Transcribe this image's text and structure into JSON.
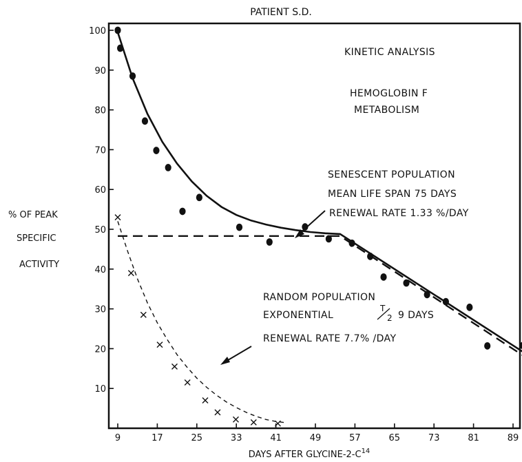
{
  "chart_data": {
    "type": "line",
    "title": "PATIENT S.D.",
    "xlabel": "DAYS AFTER GLYCINE-2-C",
    "xlabel_sup": "14",
    "ylabel_lines": [
      "% OF PEAK",
      "SPECIFIC",
      "ACTIVITY"
    ],
    "xlim": [
      9,
      92
    ],
    "ylim": [
      0,
      100
    ],
    "x_ticks": [
      9,
      17,
      25,
      33,
      41,
      49,
      57,
      65,
      73,
      81,
      89
    ],
    "y_ticks": [
      10,
      20,
      30,
      40,
      50,
      60,
      70,
      80,
      90,
      100
    ],
    "grid": false,
    "annotations": {
      "kinetic": "KINETIC ANALYSIS",
      "hemoglobin_line1": "HEMOGLOBIN F",
      "hemoglobin_line2": "METABOLISM",
      "senescent_line1": "SENESCENT POPULATION",
      "senescent_line2": "MEAN LIFE SPAN 75 DAYS",
      "senescent_line3": "RENEWAL RATE 1.33 %/DAY",
      "random_line1": "RANDOM POPULATION",
      "random_line2_a": "EXPONENTIAL",
      "random_line2_t": "T",
      "random_line2_half": "2",
      "random_line2_b": "9 DAYS",
      "random_line3": "RENEWAL RATE 7.7% /DAY"
    },
    "series": [
      {
        "marker": "dot",
        "x": [
          9,
          9.5,
          12,
          14.5,
          16.8,
          19.2,
          22.1,
          25.5,
          33.6,
          39.7,
          46.9,
          51.7,
          56.4,
          60.1,
          62.8,
          67.4,
          71.6,
          75.4,
          80.2,
          83.8,
          91
        ],
        "y": [
          100,
          95.5,
          88.5,
          77.2,
          69.8,
          65.5,
          54.5,
          58,
          50.5,
          46.8,
          50.6,
          47.6,
          46.5,
          43.2,
          38,
          36.5,
          33.6,
          31.8,
          30.4,
          20.7,
          20.8
        ]
      },
      {
        "marker": "cross",
        "x": [
          9,
          11.7,
          14.2,
          17.5,
          20.5,
          23.1,
          26.7,
          29.2,
          32.9,
          36.5,
          41.4
        ],
        "y": [
          53,
          39,
          28.5,
          21,
          15.5,
          11.5,
          7,
          4,
          2.2,
          1.5,
          1.2
        ]
      },
      {
        "style": "solid-fit",
        "x": [
          9,
          12,
          15,
          18,
          21,
          24,
          27,
          30,
          33,
          36,
          39,
          42,
          45,
          48,
          51,
          54,
          92
        ],
        "y": [
          99.5,
          88,
          79,
          72,
          66.5,
          62,
          58.4,
          55.6,
          53.6,
          52.2,
          51.2,
          50.4,
          49.8,
          49.3,
          49,
          48.8,
          18.4
        ]
      },
      {
        "style": "dashed",
        "x": [
          9,
          54,
          92
        ],
        "y": [
          48.3,
          48.3,
          17.5
        ]
      },
      {
        "style": "dashed-thin",
        "x": [
          9,
          11,
          13,
          15,
          17,
          19,
          21,
          23,
          25,
          27,
          29,
          31,
          33,
          35,
          37,
          39,
          41,
          43
        ],
        "y": [
          52,
          44.5,
          37.5,
          31.5,
          26.5,
          22.3,
          18.5,
          15.4,
          12.6,
          10.3,
          8.3,
          6.6,
          5.2,
          4,
          3,
          2.2,
          1.7,
          1.4
        ]
      }
    ]
  }
}
